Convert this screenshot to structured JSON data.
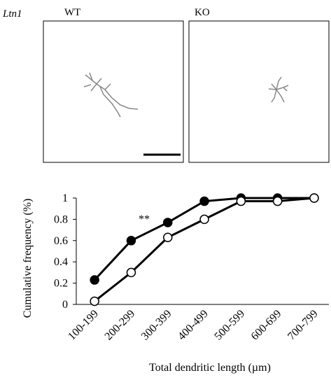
{
  "panel_labels": {
    "gene": "Ltn1",
    "left": "WT",
    "right": "KO"
  },
  "chart_data": {
    "type": "line",
    "ylabel": "Cumulative frequency (%)",
    "xlabel": "Total dendritic length (µm)",
    "annotation": "**",
    "categories": [
      "100-199",
      "200-299",
      "300-399",
      "400-499",
      "500-599",
      "600-699",
      "700-799"
    ],
    "series": [
      {
        "color": "#000000",
        "values": [
          0.23,
          0.6,
          0.77,
          0.97,
          1,
          1,
          1
        ]
      },
      {
        "color": "#ffffff",
        "values": [
          0.03,
          0.3,
          0.63,
          0.8,
          0.97,
          0.97,
          1
        ]
      }
    ],
    "ylim": [
      0,
      1
    ],
    "yticks": [
      0,
      0.2,
      0.4,
      0.6,
      0.8,
      1
    ],
    "grid": false
  }
}
